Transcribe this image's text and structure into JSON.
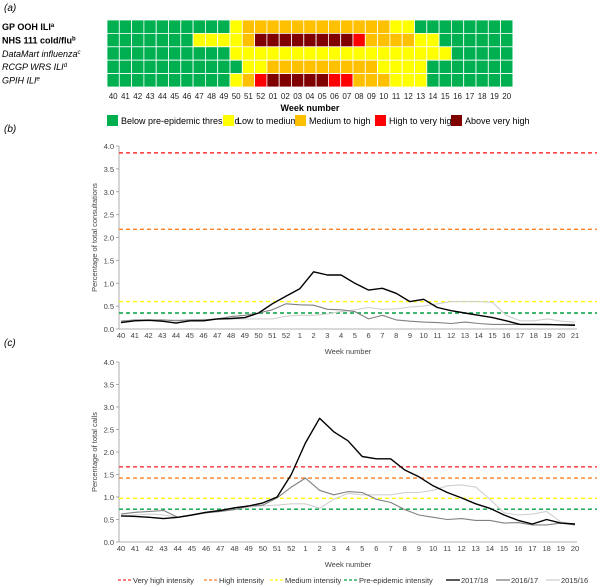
{
  "panels": {
    "a": "(a)",
    "b": "(b)",
    "c": "(c)"
  },
  "colors": {
    "G": "#00b050",
    "Y": "#ffff00",
    "O": "#ffc000",
    "R": "#ff0000",
    "D": "#800000",
    "very_high": "#ff3333",
    "high": "#ff7f27",
    "medium": "#ffff00",
    "pre": "#00a040",
    "s2017": "#000000",
    "s2016": "#808080",
    "s2015": "#d0d0d0"
  },
  "chart_data": [
    {
      "type": "heatmap",
      "xlabel": "Week number",
      "weeks": [
        "40",
        "41",
        "42",
        "43",
        "44",
        "45",
        "46",
        "47",
        "48",
        "49",
        "50",
        "51",
        "52",
        "01",
        "02",
        "03",
        "04",
        "05",
        "06",
        "07",
        "08",
        "09",
        "10",
        "11",
        "12",
        "13",
        "14",
        "15",
        "16",
        "17",
        "18",
        "19",
        "20"
      ],
      "rows": [
        {
          "label": "GP OOH ILI",
          "sup": "a",
          "style": "bold",
          "cells": "GGGGGGGGGGYOOOOOOOOOOOOYYGGGGGGGG"
        },
        {
          "label": "NHS 111 cold/flu",
          "sup": "b",
          "style": "bold",
          "cells": "GGGGGGGYYYYODDDDDDDDROOOOYYGGGGGG"
        },
        {
          "label": "DataMart influenza",
          "sup": "c",
          "style": "italic",
          "cells": "GGGGGGGGGGYYYYYYYYYYYYYYYYYYGGGGG"
        },
        {
          "label": "RCGP WRS ILI",
          "sup": "d",
          "style": "italic",
          "cells": "GGGGGGGGGGGYYOOOOOOOOOYYYYGGGGGGG"
        },
        {
          "label": "GPIH ILI",
          "sup": "e",
          "style": "italic",
          "cells": "GGGGGGGGGGYORDDDDDRROOOYYYGGGGGGG"
        }
      ],
      "legend": [
        {
          "key": "G",
          "label": "Below pre-epidemic threshold"
        },
        {
          "key": "Y",
          "label": "Low to medium"
        },
        {
          "key": "O",
          "label": "Medium to high"
        },
        {
          "key": "R",
          "label": "High to very high"
        },
        {
          "key": "D",
          "label": "Above very high"
        }
      ]
    },
    {
      "type": "line",
      "xlabel": "Week number",
      "ylabel": "Percentage of total consultations",
      "ylim": [
        0,
        4
      ],
      "yticks": [
        "0.0",
        "0.5",
        "1.0",
        "1.5",
        "2.0",
        "2.5",
        "3.0",
        "3.5",
        "4.0"
      ],
      "x": [
        "40",
        "41",
        "42",
        "43",
        "44",
        "45",
        "46",
        "47",
        "48",
        "49",
        "50",
        "51",
        "52",
        "1",
        "2",
        "3",
        "4",
        "5",
        "6",
        "7",
        "8",
        "9",
        "10",
        "11",
        "12",
        "13",
        "14",
        "15",
        "16",
        "17",
        "18",
        "19",
        "20",
        "21"
      ],
      "thresholds": {
        "very_high": 3.85,
        "high": 2.18,
        "medium": 0.6,
        "pre": 0.35
      },
      "series": [
        {
          "name": "2015/16",
          "key": "s2015",
          "values": [
            0.18,
            0.19,
            0.2,
            0.2,
            0.2,
            0.2,
            0.21,
            0.21,
            0.22,
            0.22,
            0.22,
            0.22,
            0.28,
            0.3,
            0.3,
            0.33,
            0.38,
            0.42,
            0.47,
            0.43,
            0.44,
            0.48,
            0.5,
            0.55,
            0.6,
            0.6,
            0.6,
            0.58,
            0.3,
            0.18,
            0.18,
            0.22,
            0.17,
            0.15
          ]
        },
        {
          "name": "2016/17",
          "key": "s2016",
          "values": [
            0.17,
            0.2,
            0.2,
            0.2,
            0.18,
            0.2,
            0.2,
            0.22,
            0.27,
            0.3,
            0.35,
            0.42,
            0.55,
            0.53,
            0.52,
            0.43,
            0.42,
            0.38,
            0.22,
            0.3,
            0.2,
            0.17,
            0.15,
            0.14,
            0.12,
            0.15,
            0.12,
            0.1,
            0.1,
            0.1,
            0.1,
            0.09,
            0.1,
            0.1
          ]
        },
        {
          "name": "2017/18",
          "key": "s2017",
          "values": [
            0.14,
            0.18,
            0.19,
            0.17,
            0.13,
            0.18,
            0.18,
            0.22,
            0.23,
            0.25,
            0.35,
            0.55,
            0.72,
            0.88,
            1.25,
            1.18,
            1.18,
            1.0,
            0.85,
            0.89,
            0.78,
            0.6,
            0.65,
            0.47,
            0.4,
            0.35,
            0.3,
            0.25,
            0.18,
            0.1,
            0.1,
            0.1,
            0.09,
            0.08
          ]
        }
      ]
    },
    {
      "type": "line",
      "xlabel": "Week number",
      "ylabel": "Percentage of total calls",
      "ylim": [
        0,
        4
      ],
      "yticks": [
        "0.0",
        "0.5",
        "1.0",
        "1.5",
        "2.0",
        "2.5",
        "3.0",
        "3.5",
        "4.0"
      ],
      "x": [
        "40",
        "41",
        "42",
        "43",
        "44",
        "45",
        "46",
        "47",
        "48",
        "49",
        "50",
        "51",
        "52",
        "1",
        "2",
        "3",
        "4",
        "5",
        "6",
        "7",
        "8",
        "9",
        "10",
        "11",
        "12",
        "13",
        "14",
        "15",
        "16",
        "17",
        "18",
        "19",
        "20"
      ],
      "thresholds": {
        "very_high": 1.67,
        "high": 1.42,
        "medium": 0.97,
        "pre": 0.73
      },
      "series": [
        {
          "name": "2015/16",
          "key": "s2015",
          "values": [
            0.58,
            0.6,
            0.62,
            0.6,
            0.55,
            0.6,
            0.65,
            0.68,
            0.72,
            0.78,
            0.8,
            0.82,
            0.85,
            0.85,
            0.75,
            0.95,
            1.08,
            1.05,
            1.05,
            1.05,
            1.1,
            1.1,
            1.15,
            1.25,
            1.27,
            1.22,
            0.95,
            0.65,
            0.6,
            0.62,
            0.68,
            0.45,
            0.38
          ]
        },
        {
          "name": "2016/17",
          "key": "s2016",
          "values": [
            0.62,
            0.66,
            0.68,
            0.7,
            0.55,
            0.6,
            0.65,
            0.68,
            0.72,
            0.8,
            0.82,
            0.98,
            1.22,
            1.42,
            1.15,
            1.05,
            1.12,
            1.1,
            0.95,
            0.88,
            0.72,
            0.6,
            0.55,
            0.5,
            0.52,
            0.48,
            0.48,
            0.42,
            0.43,
            0.38,
            0.38,
            0.42,
            0.38
          ]
        },
        {
          "name": "2017/18",
          "key": "s2017",
          "values": [
            0.58,
            0.57,
            0.55,
            0.52,
            0.55,
            0.6,
            0.66,
            0.7,
            0.76,
            0.8,
            0.87,
            1.0,
            1.5,
            2.2,
            2.75,
            2.45,
            2.25,
            1.9,
            1.85,
            1.85,
            1.6,
            1.45,
            1.25,
            1.1,
            0.98,
            0.85,
            0.75,
            0.6,
            0.48,
            0.4,
            0.5,
            0.42,
            0.4
          ]
        }
      ],
      "legend": [
        {
          "key": "very_high",
          "label": "Very high intensity",
          "dash": true
        },
        {
          "key": "high",
          "label": "High intensity",
          "dash": true
        },
        {
          "key": "medium",
          "label": "Medium intensity",
          "dash": true
        },
        {
          "key": "pre",
          "label": "Pre-epidemic intensity",
          "dash": true
        },
        {
          "key": "s2017",
          "label": "2017/18",
          "dash": false
        },
        {
          "key": "s2016",
          "label": "2016/17",
          "dash": false
        },
        {
          "key": "s2015",
          "label": "2015/16",
          "dash": false
        }
      ]
    }
  ]
}
